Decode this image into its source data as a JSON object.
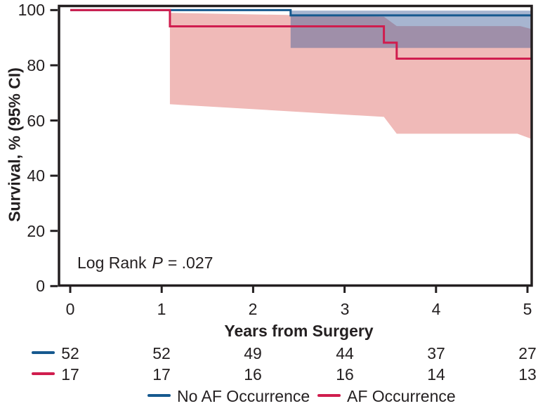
{
  "figure": {
    "annotation": {
      "prefix": "Log Rank",
      "stat": "P",
      "rest": "= .027"
    }
  },
  "chart_data": {
    "type": "line",
    "subtype": "kaplan-meier-step-curves-with-95ci-bands",
    "title": "",
    "xlabel": "Years from Surgery",
    "ylabel": "Survival, % (95% CI)",
    "xlim": [
      0,
      5
    ],
    "ylim": [
      0,
      100
    ],
    "xticks": [
      0,
      1,
      2,
      3,
      4,
      5
    ],
    "yticks_top_to_bottom": [
      100,
      80,
      60,
      40,
      20,
      0
    ],
    "grid": false,
    "legend_position": "bottom",
    "annotation_text": "Log Rank P = .027",
    "axis_color": "#231f20",
    "series": [
      {
        "name": "No AF Occurrence",
        "color": "#16598f",
        "band_fill": "rgba(60,90,150,0.45)",
        "steps": [
          [
            0,
            100
          ],
          [
            2.41,
            100
          ],
          [
            2.41,
            98.1
          ],
          [
            5,
            98.1
          ]
        ],
        "ci_upper": [
          [
            2.41,
            99.8
          ],
          [
            5,
            99.8
          ]
        ],
        "ci_lower": [
          [
            2.41,
            86.3
          ],
          [
            5,
            86.3
          ]
        ]
      },
      {
        "name": "AF Occurrence",
        "color": "#d01d4e",
        "band_fill": "#f0bab8",
        "steps": [
          [
            0,
            100
          ],
          [
            1.09,
            100
          ],
          [
            1.09,
            94.1
          ],
          [
            3.43,
            94.1
          ],
          [
            3.43,
            88.2
          ],
          [
            3.57,
            88.2
          ],
          [
            3.57,
            82.4
          ],
          [
            5,
            82.4
          ]
        ],
        "ci_upper": [
          [
            1.09,
            99.0
          ],
          [
            3.43,
            97.6
          ],
          [
            3.57,
            94.2
          ],
          [
            4.92,
            94.2
          ],
          [
            5,
            93.2
          ]
        ],
        "ci_lower": [
          [
            1.09,
            65.9
          ],
          [
            3.43,
            61.3
          ],
          [
            3.57,
            55.2
          ],
          [
            4.89,
            55.2
          ],
          [
            5,
            53.4
          ]
        ]
      }
    ],
    "risk_table": {
      "rows": [
        {
          "name": "No AF Occurrence",
          "color": "#16598f",
          "counts": [
            52,
            52,
            49,
            44,
            37,
            27
          ]
        },
        {
          "name": "AF Occurrence",
          "color": "#d01d4e",
          "counts": [
            17,
            17,
            16,
            16,
            14,
            13
          ]
        }
      ]
    }
  }
}
